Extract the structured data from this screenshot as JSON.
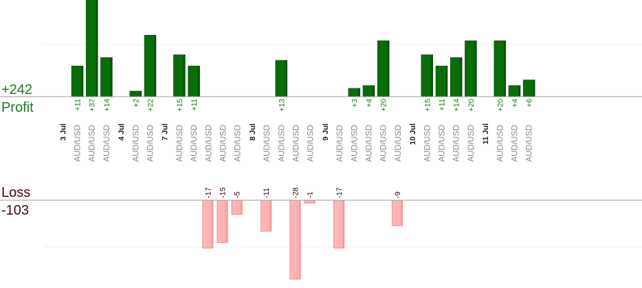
{
  "summary": {
    "profit_total": "+242",
    "profit_label": "Profit",
    "loss_label": "Loss",
    "loss_total": "-103"
  },
  "colors": {
    "profit_bar": "#0a6a0a",
    "profit_bar_edge": "#044804",
    "profit_text": "#1a7a1a",
    "loss_bar": "#ffb4b4",
    "loss_bar_edge": "#e88a8a",
    "loss_text": "#3a0a0a",
    "pair_text": "#8a8a8a",
    "date_text": "#222222",
    "axis": "#999999",
    "grid": "#eeeeee"
  },
  "chart_data": {
    "type": "bar",
    "title": "",
    "grid": true,
    "profit_axis_max": 37,
    "loss_axis_max": 28,
    "days": [
      {
        "date": "3 Jul",
        "trades": [
          {
            "pair": "AUD/USD",
            "result": 11,
            "label": "+11"
          },
          {
            "pair": "AUD/USD",
            "result": 37,
            "label": "+37"
          },
          {
            "pair": "AUD/USD",
            "result": 14,
            "label": "+14"
          }
        ]
      },
      {
        "date": "4 Jul",
        "trades": [
          {
            "pair": "AUD/USD",
            "result": 2,
            "label": "+2"
          },
          {
            "pair": "AUD/USD",
            "result": 22,
            "label": "+22"
          }
        ]
      },
      {
        "date": "7 Jul",
        "trades": [
          {
            "pair": "AUD/USD",
            "result": 15,
            "label": "+15"
          },
          {
            "pair": "AUD/USD",
            "result": 11,
            "label": "+11"
          },
          {
            "pair": "AUD/USD",
            "result": -17,
            "label": "-17"
          },
          {
            "pair": "AUD/USD",
            "result": -15,
            "label": "-15"
          },
          {
            "pair": "AUD/USD",
            "result": -5,
            "label": "-5"
          }
        ]
      },
      {
        "date": "8 Jul",
        "trades": [
          {
            "pair": "AUD/USD",
            "result": -11,
            "label": "-11"
          },
          {
            "pair": "AUD/USD",
            "result": 13,
            "label": "+13"
          },
          {
            "pair": "AUD/USD",
            "result": -28,
            "label": "-28"
          },
          {
            "pair": "AUD/USD",
            "result": -1,
            "label": "-1"
          }
        ]
      },
      {
        "date": "9 Jul",
        "trades": [
          {
            "pair": "AUD/USD",
            "result": -17,
            "label": "-17"
          },
          {
            "pair": "AUD/USD",
            "result": 3,
            "label": "+3"
          },
          {
            "pair": "AUD/USD",
            "result": 4,
            "label": "+4"
          },
          {
            "pair": "AUD/USD",
            "result": 20,
            "label": "+20"
          },
          {
            "pair": "AUD/USD",
            "result": -9,
            "label": "-9"
          }
        ]
      },
      {
        "date": "10 Jul",
        "trades": [
          {
            "pair": "AUD/USD",
            "result": 15,
            "label": "+15"
          },
          {
            "pair": "AUD/USD",
            "result": 11,
            "label": "+11"
          },
          {
            "pair": "AUD/USD",
            "result": 14,
            "label": "+14"
          },
          {
            "pair": "AUD/USD",
            "result": 20,
            "label": "+20"
          }
        ]
      },
      {
        "date": "11 Jul",
        "trades": [
          {
            "pair": "AUD/USD",
            "result": 20,
            "label": "+20"
          },
          {
            "pair": "AUD/USD",
            "result": 4,
            "label": "+4"
          },
          {
            "pair": "AUD/USD",
            "result": 6,
            "label": "+6"
          }
        ]
      }
    ]
  }
}
